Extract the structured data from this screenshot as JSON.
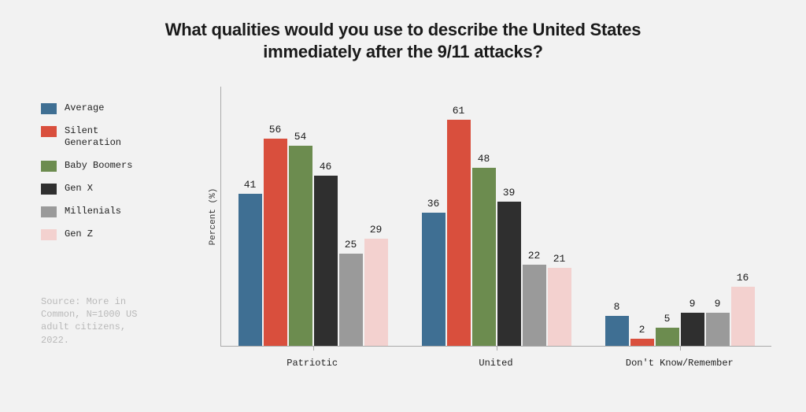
{
  "title_line1": "What qualities would you use to describe the United States",
  "title_line2": "immediately after the 9/11 attacks?",
  "ylabel": "Percent (%)",
  "source": "Source: More in Common, N=1000 US adult citizens, 2022.",
  "chart": {
    "type": "grouped-bar",
    "ymax": 70,
    "background_color": "#f2f2f2",
    "axis_color": "#aaaaaa",
    "value_label_fontsize": 13,
    "font_family_data": "Courier New",
    "series": [
      {
        "label": "Average",
        "color": "#3f6f93"
      },
      {
        "label": "Silent Generation",
        "color": "#d94f3d"
      },
      {
        "label": "Baby Boomers",
        "color": "#6c8c4f"
      },
      {
        "label": "Gen X",
        "color": "#2f2f2f"
      },
      {
        "label": "Millenials",
        "color": "#9a9a9a"
      },
      {
        "label": "Gen Z",
        "color": "#f3d1cf"
      }
    ],
    "categories": [
      {
        "label": "Patriotic",
        "values": [
          41,
          56,
          54,
          46,
          25,
          29
        ]
      },
      {
        "label": "United",
        "values": [
          36,
          61,
          48,
          39,
          22,
          21
        ]
      },
      {
        "label": "Don't Know/Remember",
        "values": [
          8,
          2,
          5,
          9,
          9,
          16
        ]
      }
    ]
  }
}
